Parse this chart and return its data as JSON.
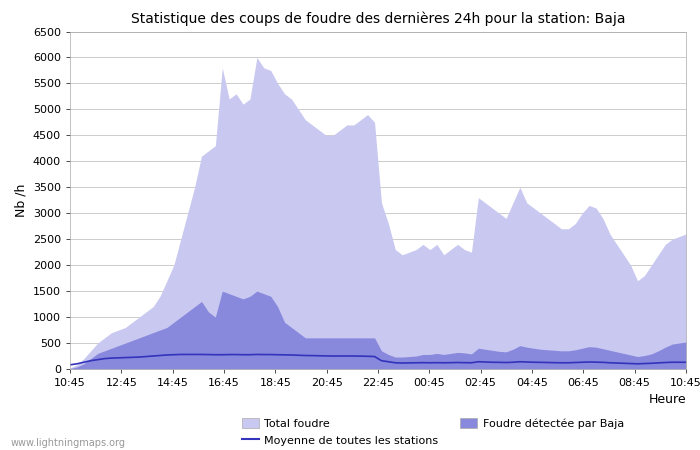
{
  "title": "Statistique des coups de foudre des dernières 24h pour la station: Baja",
  "xlabel": "Heure",
  "ylabel": "Nb /h",
  "xlabels": [
    "10:45",
    "12:45",
    "14:45",
    "16:45",
    "18:45",
    "20:45",
    "22:45",
    "00:45",
    "02:45",
    "04:45",
    "06:45",
    "08:45",
    "10:45"
  ],
  "ylim": [
    0,
    6500
  ],
  "yticks": [
    0,
    500,
    1000,
    1500,
    2000,
    2500,
    3000,
    3500,
    4000,
    4500,
    5000,
    5500,
    6000,
    6500
  ],
  "color_total": "#c8c8f0",
  "color_detected": "#8888dd",
  "color_line": "#3333bb",
  "bg_color": "#ffffff",
  "grid_color": "#cccccc",
  "watermark": "www.lightningmaps.org",
  "total_foudre": [
    20,
    80,
    200,
    350,
    500,
    600,
    700,
    750,
    800,
    900,
    1000,
    1100,
    1200,
    1400,
    1700,
    2000,
    2500,
    3000,
    3500,
    4100,
    4200,
    4300,
    5800,
    5200,
    5300,
    5100,
    5200,
    6000,
    5800,
    5750,
    5500,
    5300,
    5200,
    5000,
    4800,
    4700,
    4600,
    4500,
    4500,
    4600,
    4700,
    4700,
    4800,
    4900,
    4750,
    3200,
    2800,
    2300,
    2200,
    2250,
    2300,
    2400,
    2300,
    2400,
    2200,
    2300,
    2400,
    2300,
    2250,
    3300,
    3200,
    3100,
    3000,
    2900,
    3200,
    3500,
    3200,
    3100,
    3000,
    2900,
    2800,
    2700,
    2700,
    2800,
    3000,
    3150,
    3100,
    2900,
    2600,
    2400,
    2200,
    2000,
    1700,
    1800,
    2000,
    2200,
    2400,
    2500,
    2550,
    2600
  ],
  "detected_baja": [
    10,
    40,
    100,
    200,
    300,
    350,
    400,
    450,
    500,
    550,
    600,
    650,
    700,
    750,
    800,
    900,
    1000,
    1100,
    1200,
    1300,
    1100,
    1000,
    1500,
    1450,
    1400,
    1350,
    1400,
    1500,
    1450,
    1400,
    1200,
    900,
    800,
    700,
    600,
    600,
    600,
    600,
    600,
    600,
    600,
    600,
    600,
    600,
    600,
    350,
    280,
    230,
    230,
    240,
    250,
    280,
    280,
    300,
    280,
    300,
    320,
    310,
    290,
    400,
    380,
    360,
    340,
    330,
    380,
    450,
    420,
    400,
    380,
    370,
    360,
    350,
    350,
    370,
    400,
    430,
    420,
    390,
    360,
    330,
    300,
    270,
    240,
    260,
    290,
    350,
    420,
    480,
    500,
    520
  ],
  "mean_line": [
    80,
    100,
    130,
    160,
    180,
    200,
    210,
    215,
    220,
    225,
    230,
    240,
    250,
    260,
    270,
    275,
    280,
    280,
    280,
    280,
    278,
    275,
    275,
    278,
    278,
    275,
    275,
    280,
    278,
    278,
    275,
    272,
    270,
    265,
    260,
    258,
    255,
    252,
    250,
    250,
    250,
    250,
    248,
    245,
    240,
    160,
    140,
    120,
    115,
    118,
    120,
    122,
    120,
    122,
    120,
    122,
    125,
    122,
    120,
    140,
    135,
    130,
    128,
    125,
    130,
    140,
    135,
    130,
    128,
    125,
    122,
    120,
    120,
    125,
    130,
    135,
    132,
    128,
    120,
    115,
    110,
    105,
    100,
    105,
    110,
    118,
    125,
    130,
    130,
    130
  ]
}
